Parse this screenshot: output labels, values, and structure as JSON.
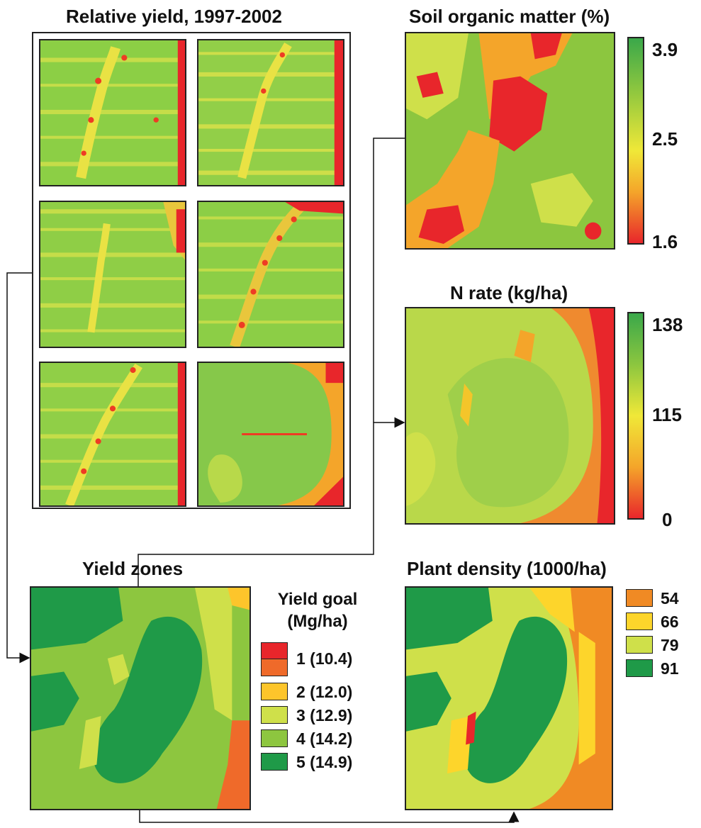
{
  "titles": {
    "relative_yield": "Relative yield, 1997-2002",
    "soil_om": "Soil organic matter (%)",
    "n_rate": "N rate (kg/ha)",
    "yield_zones": "Yield zones",
    "plant_density": "Plant density (1000/ha)"
  },
  "soil_om_scale": {
    "max": "3.9",
    "mid": "2.5",
    "min": "1.6"
  },
  "n_rate_scale": {
    "max": "138",
    "mid": "115",
    "min": "0"
  },
  "yield_goal": {
    "title_line1": "Yield goal",
    "title_line2": "(Mg/ha)",
    "zones": [
      {
        "label": "1 (10.4)",
        "colors": [
          "#e8262b",
          "#ef6a2a"
        ]
      },
      {
        "label": "2 (12.0)",
        "colors": [
          "#fdc52b"
        ]
      },
      {
        "label": "3 (12.9)",
        "colors": [
          "#cfe04a"
        ]
      },
      {
        "label": "4 (14.2)",
        "colors": [
          "#8dc63f"
        ]
      },
      {
        "label": "5 (14.9)",
        "colors": [
          "#1f9a48"
        ]
      }
    ]
  },
  "plant_density_legend": [
    {
      "label": "54",
      "color": "#f08a24"
    },
    {
      "label": "66",
      "color": "#fdd52b"
    },
    {
      "label": "79",
      "color": "#cfe04a"
    },
    {
      "label": "91",
      "color": "#1f9a48"
    }
  ]
}
